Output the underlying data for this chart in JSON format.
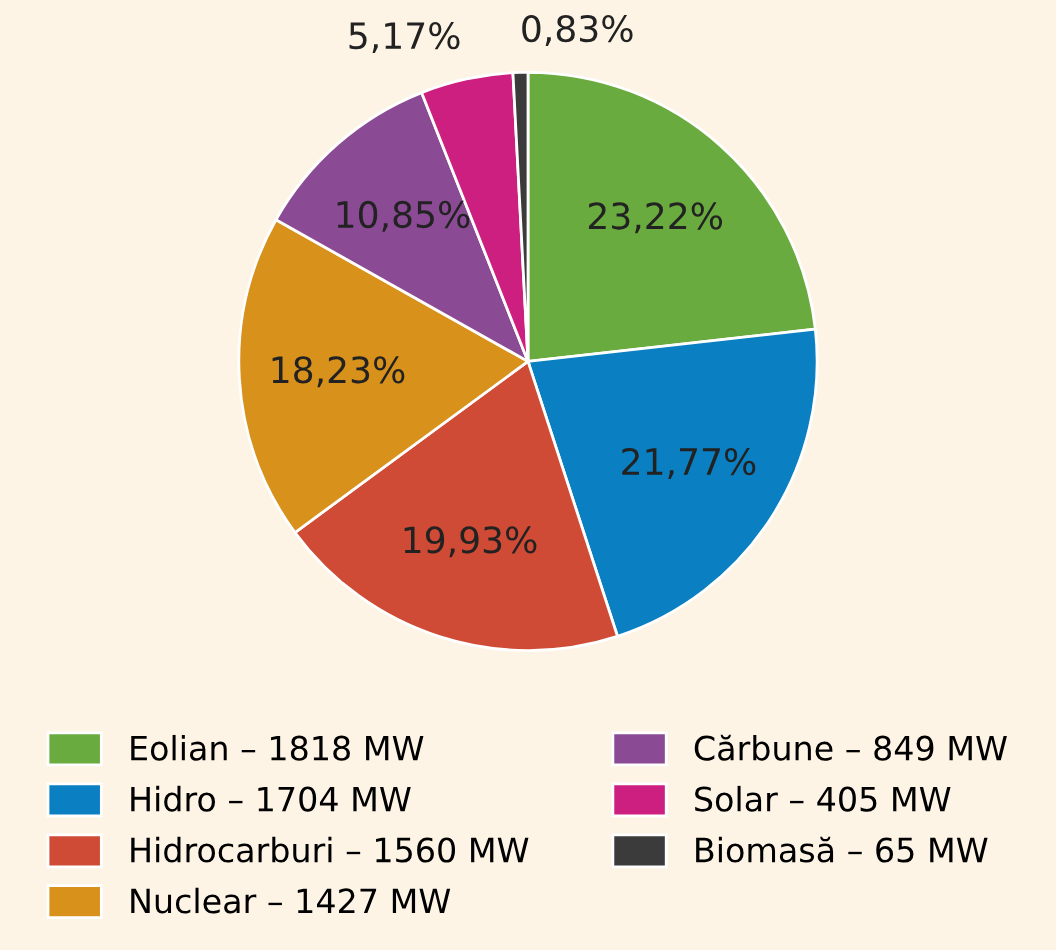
{
  "chart_data": {
    "type": "pie",
    "categories": [
      "Eolian – 1818 MW",
      "Hidro – 1704 MW",
      "Hidrocarburi – 1560 MW",
      "Nuclear – 1427 MW",
      "Cărbune – 849 MW",
      "Solar – 405 MW",
      "Biomasă – 65 MW"
    ],
    "values": [
      23.22,
      21.77,
      19.93,
      18.23,
      10.85,
      5.17,
      0.83
    ],
    "value_labels": [
      "23,22%",
      "21,77%",
      "19,93%",
      "18,23%",
      "10,85%",
      "5,17%",
      "0,83%"
    ],
    "colors": [
      "#6aab3f",
      "#0a7fc1",
      "#d04b35",
      "#d8911b",
      "#8a4a94",
      "#cc1f80",
      "#3b3b3b"
    ],
    "legend": "bottom"
  }
}
